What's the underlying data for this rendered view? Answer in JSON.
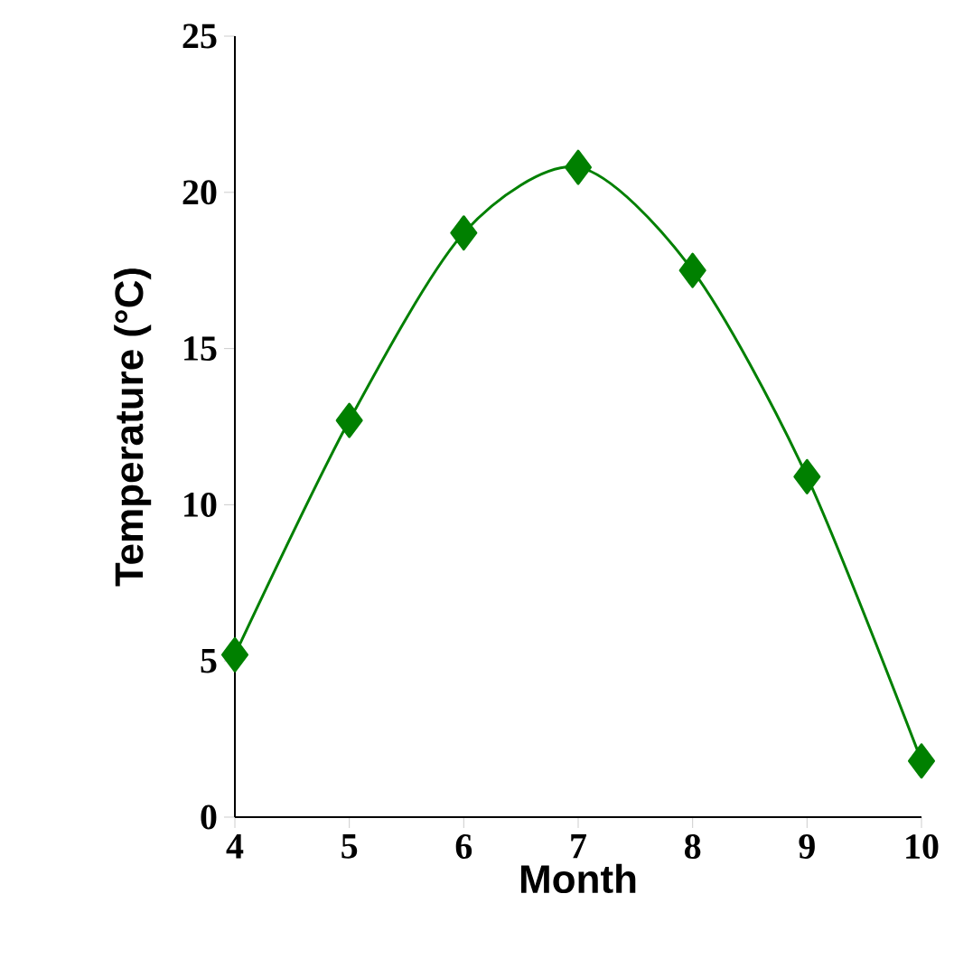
{
  "chart_data": {
    "type": "line",
    "xlabel": "Month",
    "ylabel": "Temperature (°C)",
    "x": [
      4,
      5,
      6,
      7,
      8,
      9,
      10
    ],
    "series": [
      {
        "color": "#008000",
        "values": [
          5.2,
          12.7,
          18.7,
          20.8,
          17.5,
          10.9,
          1.8
        ]
      }
    ],
    "marker": "diamond",
    "grid": false,
    "xlim": [
      4,
      10
    ],
    "xticks": [
      4,
      5,
      6,
      7,
      8,
      9,
      10
    ],
    "ylim": [
      0,
      25
    ],
    "yticks": [
      0,
      5,
      10,
      15,
      20,
      25
    ]
  }
}
